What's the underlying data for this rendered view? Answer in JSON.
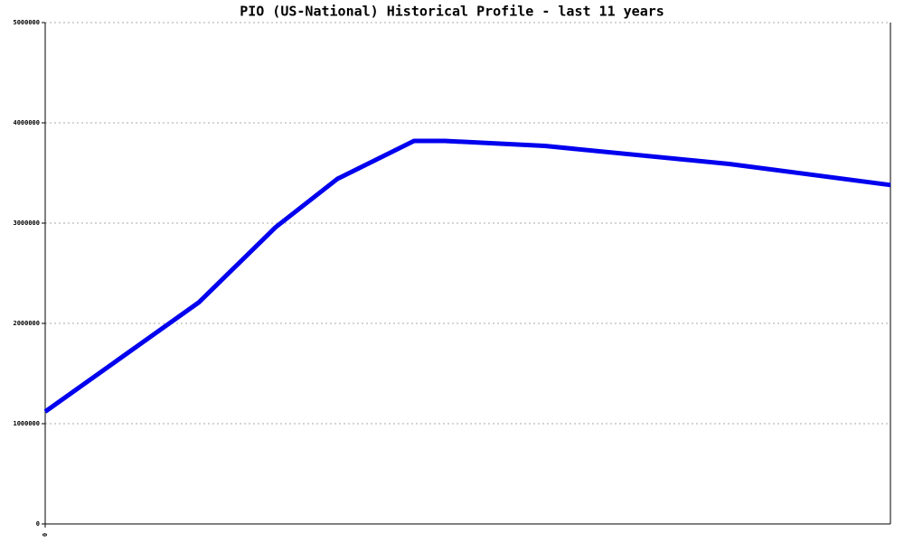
{
  "chart_data": {
    "type": "line",
    "title": "PIO (US-National) Historical Profile - last 11 years",
    "x": [
      0,
      20,
      30,
      38,
      48,
      52,
      65,
      89,
      110
    ],
    "series": [
      {
        "color": "#0000ee",
        "values": [
          1120000,
          2210000,
          2960000,
          3440000,
          3820000,
          3820000,
          3770000,
          3590000,
          3380000
        ]
      }
    ],
    "xlim": [
      0,
      110
    ],
    "xticks": [
      0
    ],
    "ylim": [
      0,
      5000000
    ],
    "yticks": [
      0,
      1000000,
      2000000,
      3000000,
      4000000,
      5000000
    ],
    "grid": true
  }
}
